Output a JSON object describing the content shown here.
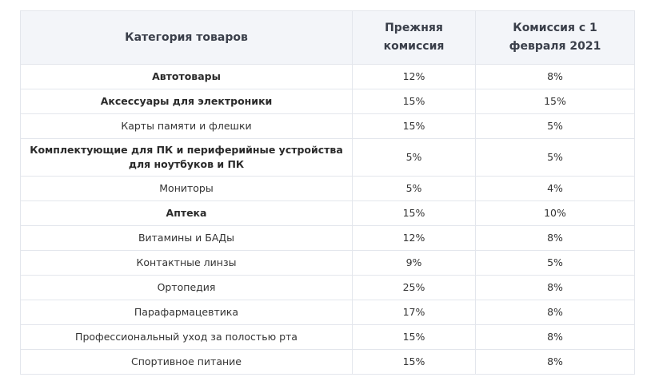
{
  "table": {
    "headers": [
      "Категория товаров",
      "Прежняя комиссия",
      "Комиссия с 1 февраля 2021"
    ],
    "rows": [
      {
        "category": "Автотовары",
        "old": "12%",
        "new": "8%",
        "bold": true
      },
      {
        "category": "Аксессуары для электроники",
        "old": "15%",
        "new": "15%",
        "bold": true
      },
      {
        "category": "Карты памяти и флешки",
        "old": "15%",
        "new": "5%",
        "bold": false
      },
      {
        "category": "Комплектующие для ПК и периферийные устройства для ноутбуков и ПК",
        "old": "5%",
        "new": "5%",
        "bold": true
      },
      {
        "category": "Мониторы",
        "old": "5%",
        "new": "4%",
        "bold": false
      },
      {
        "category": "Аптека",
        "old": "15%",
        "new": "10%",
        "bold": true
      },
      {
        "category": "Витамины и БАДы",
        "old": "12%",
        "new": "8%",
        "bold": false
      },
      {
        "category": "Контактные линзы",
        "old": "9%",
        "new": "5%",
        "bold": false
      },
      {
        "category": "Ортопедия",
        "old": "25%",
        "new": "8%",
        "bold": false
      },
      {
        "category": "Парафармацевтика",
        "old": "17%",
        "new": "8%",
        "bold": false
      },
      {
        "category": "Профессиональный уход за полостью рта",
        "old": "15%",
        "new": "8%",
        "bold": false
      },
      {
        "category": "Спортивное питание",
        "old": "15%",
        "new": "8%",
        "bold": false
      }
    ]
  },
  "colors": {
    "header_bg": "#f3f5f9",
    "border": "#e3e6ec"
  }
}
